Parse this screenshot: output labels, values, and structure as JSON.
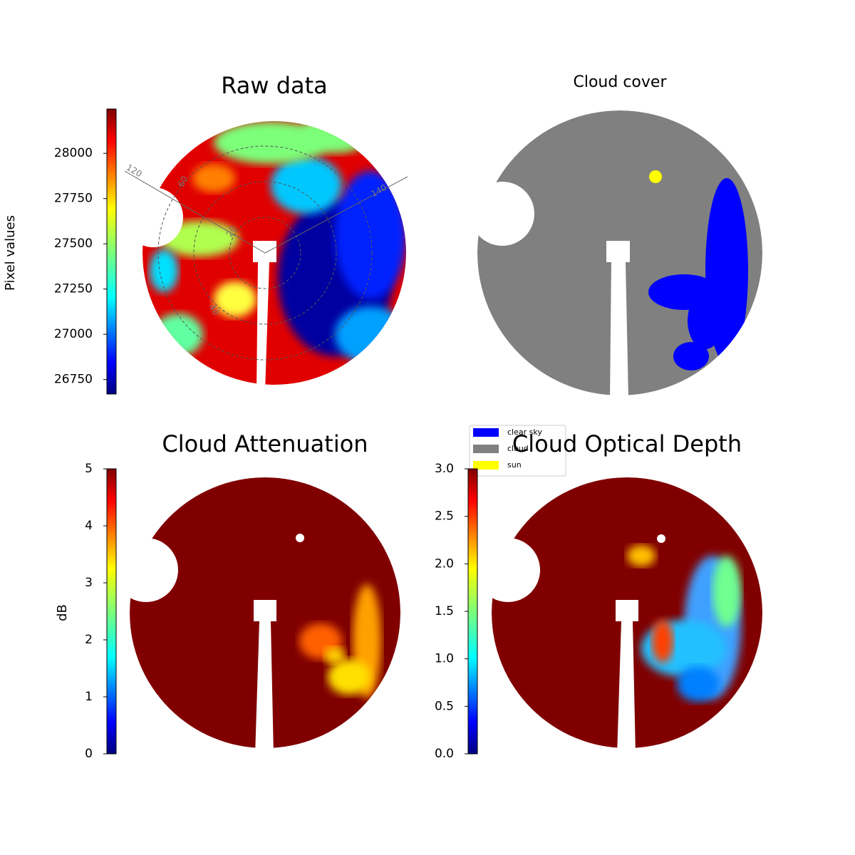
{
  "chart_data": [
    {
      "type": "image",
      "title": "Raw data",
      "colorbar": {
        "label": "Pixel values",
        "colormap": "jet",
        "lim": [
          26670,
          28245
        ],
        "ticks": [
          26750,
          27000,
          27250,
          27500,
          27750,
          28000
        ]
      },
      "annotations": [
        "120",
        "60",
        "20",
        "40",
        "140"
      ]
    },
    {
      "type": "image",
      "title": "Cloud cover",
      "legend": [
        {
          "name": "clear sky",
          "color": "#0000ff"
        },
        {
          "name": "cloud",
          "color": "#808080"
        },
        {
          "name": "sun",
          "color": "#ffff00"
        }
      ]
    },
    {
      "type": "image",
      "title": "Cloud Attenuation",
      "colorbar": {
        "label": "dB",
        "colormap": "jet",
        "lim": [
          0,
          5
        ],
        "ticks": [
          0,
          1,
          2,
          3,
          4,
          5
        ]
      }
    },
    {
      "type": "image",
      "title": "Cloud Optical Depth",
      "colorbar": {
        "colormap": "jet",
        "lim": [
          0,
          3
        ],
        "ticks": [
          {
            "value": 0,
            "label": "0.0"
          },
          0.5,
          {
            "value": 1,
            "label": "1.0"
          },
          1.5,
          {
            "value": 2,
            "label": "2.0"
          },
          2.5,
          {
            "value": 3,
            "label": "3.0"
          }
        ]
      }
    }
  ]
}
